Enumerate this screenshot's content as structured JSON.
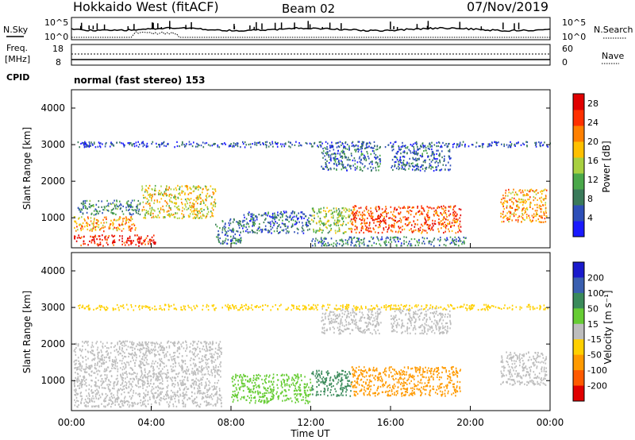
{
  "header": {
    "radar": "Hokkaido West (fitACF)",
    "beam": "Beam 02",
    "date": "07/Nov/2019"
  },
  "nsky_panel": {
    "left_label": "N.Sky",
    "right_label": "N.Search",
    "top_tick": "10^5",
    "bottom_tick": "10^0"
  },
  "freq_panel": {
    "left_label_1": "Freq.",
    "left_label_2": "[MHz]",
    "right_label": "Nave",
    "left_ticks": [
      "18",
      "8"
    ],
    "right_ticks": [
      "60",
      "0"
    ]
  },
  "cpid": {
    "label": "CPID",
    "text": "normal (fast stereo) 153"
  },
  "colors": {
    "power": [
      "#1a1aff",
      "#2e4fb8",
      "#3a7a5a",
      "#4aa84a",
      "#a8d040",
      "#ffc000",
      "#ff8000",
      "#ff3000",
      "#e00000"
    ],
    "velocity": [
      "#1a1acc",
      "#3a5fb0",
      "#3a8a5a",
      "#66cc33",
      "#bdbdbd",
      "#ffd000",
      "#ff9a00",
      "#ff5a00",
      "#e00000"
    ]
  },
  "chart_data": [
    {
      "type": "heatmap",
      "ylabel": "Slant Range [km]",
      "yticks": [
        "1000",
        "2000",
        "3000",
        "4000"
      ],
      "yticks_values": [
        1000,
        2000,
        3000,
        4000
      ],
      "ylim": [
        180,
        4500
      ],
      "xlim": [
        0,
        24
      ],
      "colorbar_label": "Power [dB]",
      "colorbar_ticks": [
        "4",
        "8",
        "12",
        "16",
        "20",
        "24",
        "28"
      ],
      "colorbar_tick_values": [
        4,
        8,
        12,
        16,
        20,
        24,
        28
      ],
      "colorbar_range": [
        0,
        30
      ],
      "regions": [
        {
          "t": [
            0.1,
            4.2
          ],
          "r": [
            250,
            550
          ],
          "value": 27
        },
        {
          "t": [
            0.1,
            3.2
          ],
          "r": [
            650,
            1050
          ],
          "value": 20
        },
        {
          "t": [
            0.3,
            3.5
          ],
          "r": [
            1100,
            1500
          ],
          "value": 9
        },
        {
          "t": [
            3.5,
            7.2
          ],
          "r": [
            1000,
            1900
          ],
          "value": 17
        },
        {
          "t": [
            7.2,
            8.5
          ],
          "r": [
            300,
            1000
          ],
          "value": 8
        },
        {
          "t": [
            8.5,
            12.0
          ],
          "r": [
            600,
            1200
          ],
          "value": 6
        },
        {
          "t": [
            12.0,
            14.0
          ],
          "r": [
            600,
            1300
          ],
          "value": 14
        },
        {
          "t": [
            14.0,
            19.5
          ],
          "r": [
            600,
            1350
          ],
          "value": 24
        },
        {
          "t": [
            12.0,
            19.8
          ],
          "r": [
            250,
            500
          ],
          "value": 8
        },
        {
          "t": [
            12.5,
            15.5
          ],
          "r": [
            2300,
            3000
          ],
          "value": 7
        },
        {
          "t": [
            16.0,
            19.0
          ],
          "r": [
            2300,
            3000
          ],
          "value": 6
        },
        {
          "t": [
            21.5,
            23.8
          ],
          "r": [
            900,
            1800
          ],
          "value": 20
        },
        {
          "t": [
            0.3,
            24.0
          ],
          "r": [
            2950,
            3100
          ],
          "value": 5
        }
      ]
    },
    {
      "type": "heatmap",
      "ylabel": "Slant Range [km]",
      "yticks": [
        "1000",
        "2000",
        "3000",
        "4000"
      ],
      "yticks_values": [
        1000,
        2000,
        3000,
        4000
      ],
      "ylim": [
        180,
        4500
      ],
      "xlabel": "Time UT",
      "xticks": [
        "00:00",
        "04:00",
        "08:00",
        "12:00",
        "16:00",
        "20:00",
        "00:00"
      ],
      "xticks_values": [
        0,
        4,
        8,
        12,
        16,
        20,
        24
      ],
      "xlim": [
        0,
        24
      ],
      "colorbar_label": "Velocity [m s⁻¹]",
      "colorbar_ticks": [
        "200",
        "100",
        "50",
        "15",
        "-15",
        "-50",
        "-100",
        "-200"
      ],
      "regions": [
        {
          "t": [
            0.1,
            7.5
          ],
          "r": [
            300,
            2100
          ],
          "value": 0
        },
        {
          "t": [
            8.0,
            12.0
          ],
          "r": [
            400,
            1200
          ],
          "value": 30
        },
        {
          "t": [
            12.0,
            14.0
          ],
          "r": [
            600,
            1300
          ],
          "value": 60
        },
        {
          "t": [
            14.0,
            19.5
          ],
          "r": [
            600,
            1400
          ],
          "value": -80
        },
        {
          "t": [
            12.5,
            15.5
          ],
          "r": [
            2300,
            3000
          ],
          "value": 0
        },
        {
          "t": [
            16.0,
            19.0
          ],
          "r": [
            2300,
            3000
          ],
          "value": 0
        },
        {
          "t": [
            21.5,
            23.8
          ],
          "r": [
            900,
            1800
          ],
          "value": 0
        },
        {
          "t": [
            0.3,
            24.0
          ],
          "r": [
            2950,
            3100
          ],
          "value": -30
        }
      ]
    }
  ]
}
